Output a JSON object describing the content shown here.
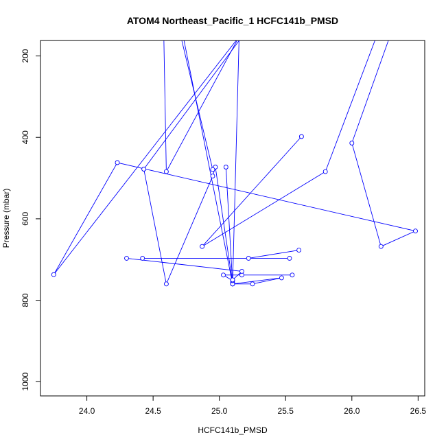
{
  "chart_data": {
    "type": "line",
    "title": "ATOM4 Northeast_Pacific_1 HCFC141b_PMSD",
    "xlabel": "HCFC141b_PMSD",
    "ylabel": "Pressure (mbar)",
    "xlim": [
      23.65,
      26.55
    ],
    "ylim": [
      1035,
      162
    ],
    "y_inverted": true,
    "x_ticks": [
      24.0,
      24.5,
      25.0,
      25.5,
      26.0,
      26.5
    ],
    "x_tick_labels": [
      "24.0",
      "24.5",
      "25.0",
      "25.5",
      "26.0",
      "26.5"
    ],
    "y_ticks": [
      200,
      400,
      600,
      800,
      1000
    ],
    "y_tick_labels": [
      "200",
      "400",
      "600",
      "800",
      "1000"
    ],
    "series_color": "#0000ff",
    "series": [
      {
        "segments": [
          [
            [
              24.72,
              140
            ],
            [
              25.1,
              760
            ],
            [
              25.25,
              760
            ],
            [
              25.47,
              745
            ],
            [
              25.1,
              760
            ]
          ],
          [
            [
              25.15,
              140
            ],
            [
              25.1,
              758
            ],
            [
              25.1,
              760
            ]
          ],
          [
            [
              25.62,
              398
            ],
            [
              24.87,
              668
            ],
            [
              25.8,
              484
            ],
            [
              26.2,
              140
            ]
          ],
          [
            [
              26.3,
              140
            ],
            [
              26.0,
              414
            ],
            [
              26.22,
              668
            ],
            [
              26.48,
              630
            ],
            [
              24.23,
              462
            ],
            [
              23.75,
              737
            ],
            [
              25.18,
              140
            ]
          ],
          [
            [
              25.2,
              140
            ],
            [
              24.43,
              478
            ],
            [
              24.6,
              760
            ],
            [
              24.95,
              495
            ],
            [
              24.97,
              473
            ],
            [
              25.1,
              758
            ]
          ],
          [
            [
              25.05,
              473
            ],
            [
              25.1,
              760
            ]
          ],
          [
            [
              24.95,
              479
            ],
            [
              24.7,
              140
            ]
          ],
          [
            [
              25.17,
              140
            ],
            [
              24.6,
              484
            ],
            [
              24.58,
              140
            ]
          ],
          [
            [
              25.1,
              752
            ],
            [
              25.03,
              738
            ],
            [
              25.17,
              738
            ],
            [
              25.55,
              738
            ]
          ],
          [
            [
              24.3,
              697
            ],
            [
              25.17,
              729
            ],
            [
              25.1,
              750
            ]
          ],
          [
            [
              24.42,
              697
            ],
            [
              25.53,
              697
            ],
            [
              25.22,
              697
            ],
            [
              25.6,
              677
            ]
          ]
        ]
      }
    ],
    "grid": false,
    "legend": "none"
  }
}
